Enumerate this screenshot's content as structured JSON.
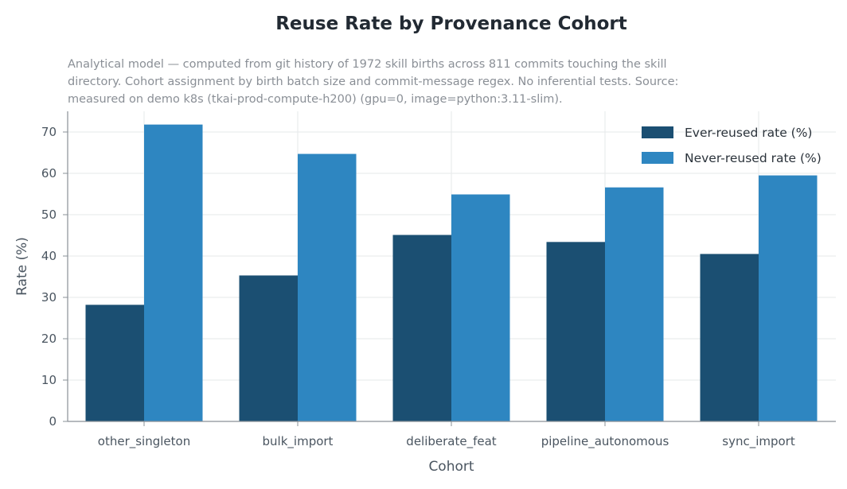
{
  "chart_data": {
    "type": "bar",
    "title": "Reuse Rate by Provenance Cohort",
    "subtitle_lines": [
      "Analytical model — computed from git history of 1972 skill births across 811 commits touching the skill",
      "directory. Cohort assignment by birth batch size and commit-message regex. No inferential tests. Source:",
      "measured on demo k8s (tkai-prod-compute-h200) (gpu=0, image=python:3.11-slim)."
    ],
    "xlabel": "Cohort",
    "ylabel": "Rate (%)",
    "ylim": [
      0,
      75
    ],
    "yticks": [
      0,
      10,
      20,
      30,
      40,
      50,
      60,
      70
    ],
    "grid": true,
    "legend_position": "top-right",
    "categories": [
      "other_singleton",
      "bulk_import",
      "deliberate_feat",
      "pipeline_autonomous",
      "sync_import"
    ],
    "series": [
      {
        "name": "Ever-reused rate (%)",
        "color": "#1b4f72",
        "values": [
          28.2,
          35.3,
          45.1,
          43.4,
          40.5
        ]
      },
      {
        "name": "Never-reused rate (%)",
        "color": "#2e86c1",
        "values": [
          71.8,
          64.7,
          54.9,
          56.6,
          59.5
        ]
      }
    ]
  }
}
